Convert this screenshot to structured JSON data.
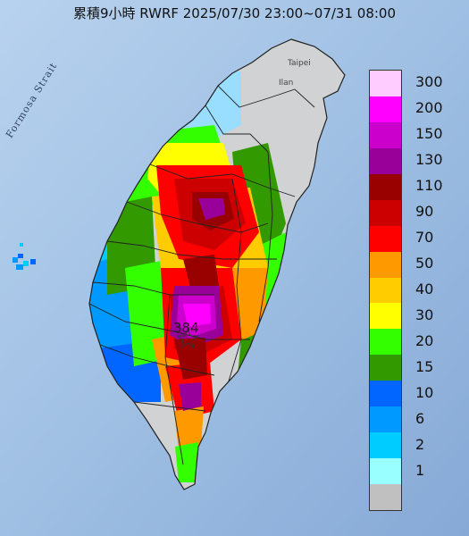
{
  "title": "累積9小時 RWRF 2025/07/30 23:00~07/31 08:00",
  "peak_value": "384",
  "labels": {
    "strait": "Formosa Strait",
    "taipei": "Taipei",
    "yilan": "Ilan"
  },
  "legend": [
    {
      "label": "300",
      "color": "#ffccff"
    },
    {
      "label": "200",
      "color": "#ff00ff"
    },
    {
      "label": "150",
      "color": "#cc00cc"
    },
    {
      "label": "130",
      "color": "#990099"
    },
    {
      "label": "110",
      "color": "#990000"
    },
    {
      "label": "90",
      "color": "#cc0000"
    },
    {
      "label": "70",
      "color": "#ff0000"
    },
    {
      "label": "50",
      "color": "#ff9900"
    },
    {
      "label": "40",
      "color": "#ffcc00"
    },
    {
      "label": "30",
      "color": "#ffff00"
    },
    {
      "label": "20",
      "color": "#33ff00"
    },
    {
      "label": "15",
      "color": "#339900"
    },
    {
      "label": "10",
      "color": "#0066ff"
    },
    {
      "label": "6",
      "color": "#0099ff"
    },
    {
      "label": "2",
      "color": "#00ccff"
    },
    {
      "label": "1",
      "color": "#99ffff"
    },
    {
      "label": "",
      "color": "#c0c0c0"
    }
  ],
  "colors": {
    "sea": "#a9c8e8",
    "land_dry": "#d0d2d4"
  }
}
